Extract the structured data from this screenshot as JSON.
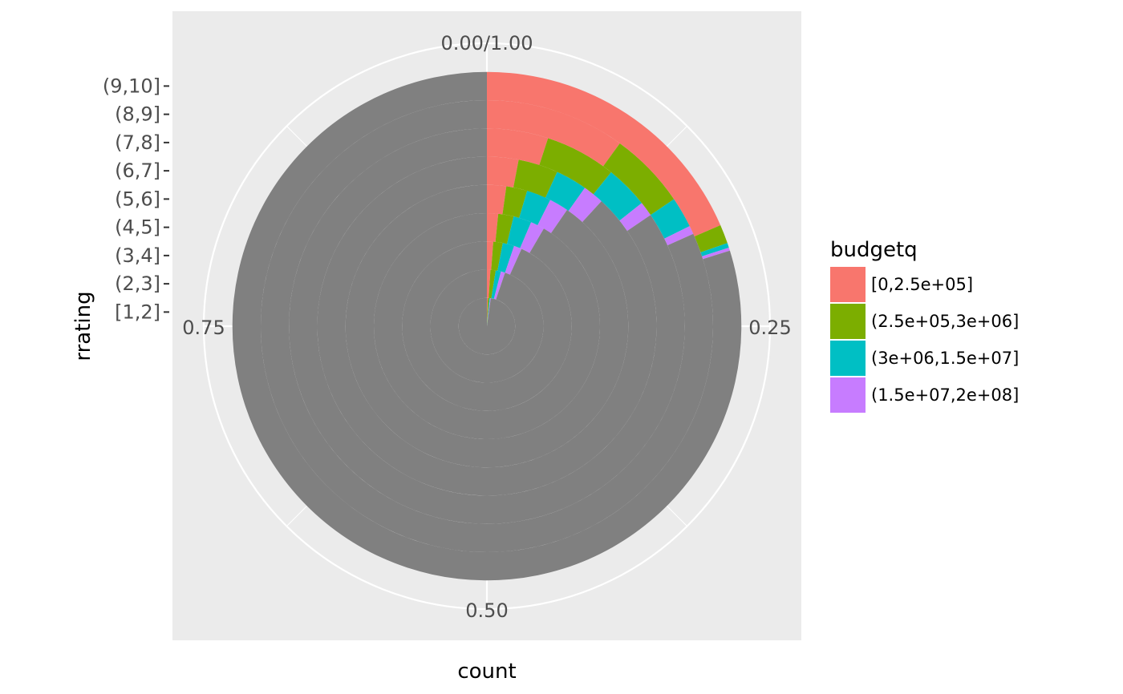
{
  "chart_data": {
    "type": "bar",
    "coord": "polar",
    "stacked": true,
    "position": "fill",
    "xlabel": "rrating",
    "ylabel": "count",
    "categories": [
      "[1,2]",
      "(2,3]",
      "(3,4]",
      "(4,5]",
      "(5,6]",
      "(6,7]",
      "(7,8]",
      "(8,9]",
      "(9,10]"
    ],
    "angle_ticks": [
      "0.00/1.00",
      "0.25",
      "0.50",
      "0.75"
    ],
    "series": [
      {
        "name": "[0,2.5e+05]",
        "color": "#F8766D",
        "values": [
          0.005,
          0.01,
          0.012,
          0.016,
          0.022,
          0.03,
          0.05,
          0.1,
          0.185
        ]
      },
      {
        "name": "(2.5e+05,3e+06]",
        "color": "#7CAE00",
        "values": [
          0.008,
          0.015,
          0.018,
          0.022,
          0.024,
          0.038,
          0.058,
          0.055,
          0.012
        ]
      },
      {
        "name": "(3e+06,1.5e+07]",
        "color": "#00BFC4",
        "values": [
          0.005,
          0.015,
          0.022,
          0.026,
          0.028,
          0.03,
          0.035,
          0.022,
          0.003
        ]
      },
      {
        "name": "(1.5e+07,2e+08]",
        "color": "#C77CFF",
        "values": [
          0.004,
          0.012,
          0.015,
          0.02,
          0.022,
          0.02,
          0.012,
          0.006,
          0.002
        ]
      },
      {
        "color": "#808080",
        "values": [
          0.978,
          0.948,
          0.933,
          0.916,
          0.904,
          0.882,
          0.845,
          0.817,
          0.798
        ]
      }
    ],
    "legend": {
      "title": "budgetq",
      "position": "right"
    },
    "grid": true
  }
}
